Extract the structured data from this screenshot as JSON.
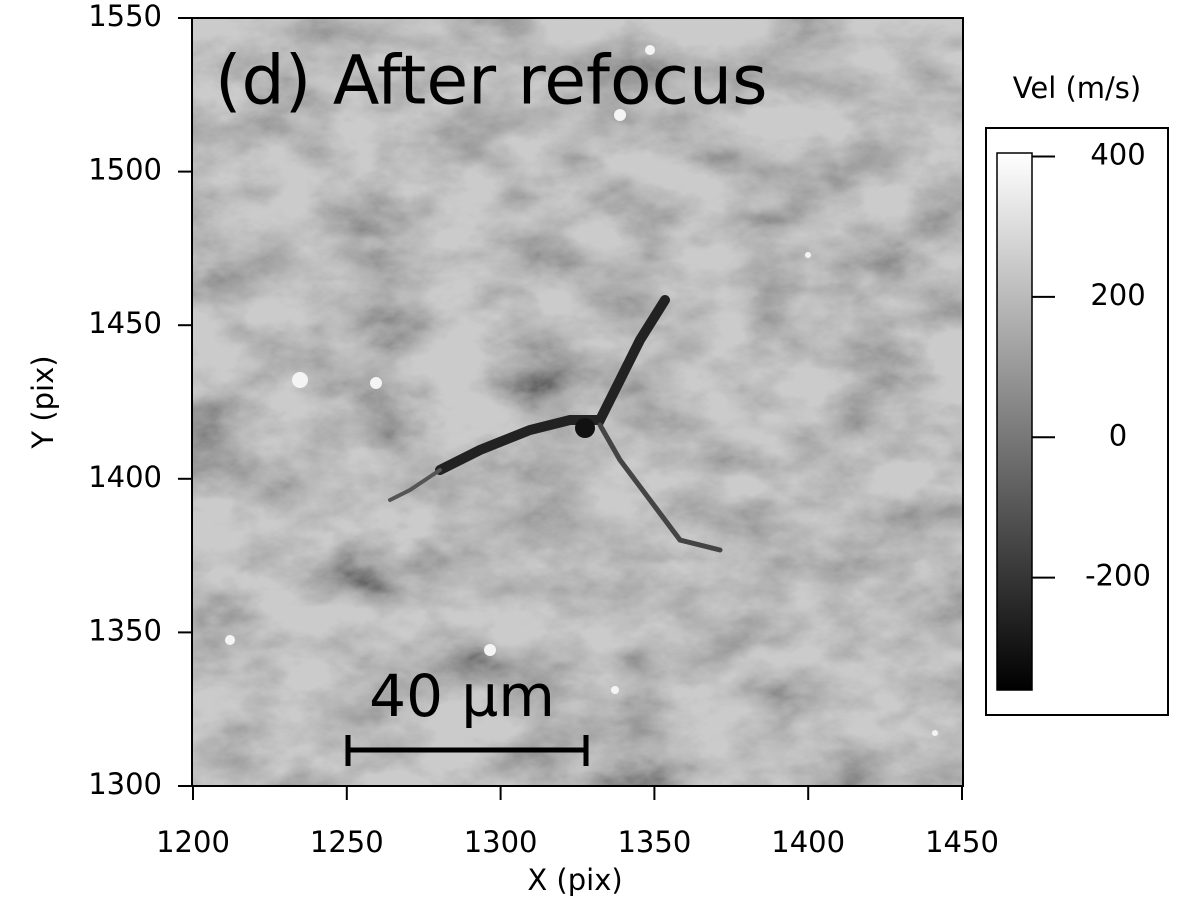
{
  "chart_data": {
    "type": "heatmap",
    "title": "(d) After refocus",
    "x_label": "X (pix)",
    "y_label": "Y (pix)",
    "xlim": [
      1200,
      1450
    ],
    "ylim": [
      1300,
      1550
    ],
    "xticks": [
      1200,
      1250,
      1300,
      1350,
      1400,
      1450
    ],
    "yticks": [
      1300,
      1350,
      1400,
      1450,
      1500,
      1550
    ],
    "colormap": "gray",
    "colorbar": {
      "label": "Vel (m/s)",
      "lim": [
        -360,
        405
      ],
      "ticks": [
        -200,
        0,
        200,
        400
      ]
    },
    "annotation": "40 µm"
  }
}
